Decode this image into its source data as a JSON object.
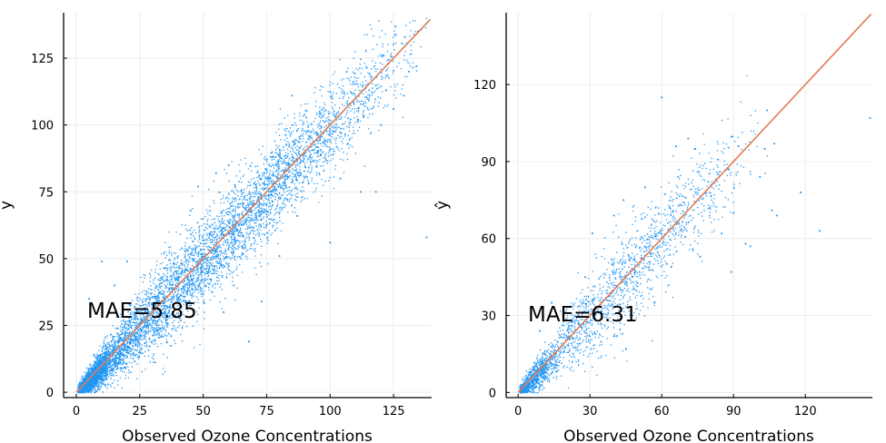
{
  "colors": {
    "points": "#2196f3",
    "line": "#e07b54",
    "grid": "#ececec",
    "axis": "#000000"
  },
  "chart_data": [
    {
      "type": "scatter",
      "title": "",
      "xlabel": "Observed Ozone Concentrations",
      "ylabel": "y",
      "annotation": "MAE=5.85",
      "xlim": [
        -5,
        140
      ],
      "ylim": [
        -2,
        142
      ],
      "xticks": [
        0,
        25,
        50,
        75,
        100,
        125
      ],
      "yticks": [
        0,
        25,
        50,
        75,
        100,
        125
      ],
      "grid": true,
      "reference_line": "y = x",
      "point_cloud": {
        "n": 7000,
        "x_max": 139,
        "noise_sd": 7.3
      },
      "points": [
        {
          "x": 85,
          "y": 111
        },
        {
          "x": 96,
          "y": 104
        },
        {
          "x": 111,
          "y": 102
        },
        {
          "x": 100,
          "y": 100
        },
        {
          "x": 122,
          "y": 113
        },
        {
          "x": 131,
          "y": 120
        },
        {
          "x": 129,
          "y": 111
        },
        {
          "x": 125,
          "y": 106
        },
        {
          "x": 116,
          "y": 97
        },
        {
          "x": 118,
          "y": 75
        },
        {
          "x": 112,
          "y": 75
        },
        {
          "x": 100,
          "y": 56
        },
        {
          "x": 138,
          "y": 58
        },
        {
          "x": 68,
          "y": 19
        },
        {
          "x": 62,
          "y": 40
        },
        {
          "x": 73,
          "y": 34
        },
        {
          "x": 80,
          "y": 51
        },
        {
          "x": 87,
          "y": 66
        },
        {
          "x": 104,
          "y": 80
        },
        {
          "x": 98,
          "y": 94
        },
        {
          "x": 92,
          "y": 88
        },
        {
          "x": 107,
          "y": 93
        },
        {
          "x": 120,
          "y": 100
        },
        {
          "x": 134,
          "y": 122
        },
        {
          "x": 55,
          "y": 82
        },
        {
          "x": 48,
          "y": 77
        },
        {
          "x": 60,
          "y": 85
        },
        {
          "x": 15,
          "y": 40
        },
        {
          "x": 10,
          "y": 49
        },
        {
          "x": 20,
          "y": 49
        },
        {
          "x": 5,
          "y": 35
        },
        {
          "x": 45,
          "y": 68
        },
        {
          "x": 70,
          "y": 78
        },
        {
          "x": 58,
          "y": 30
        }
      ]
    },
    {
      "type": "scatter",
      "title": "",
      "xlabel": "Observed Ozone Concentrations",
      "ylabel": "ŷ",
      "annotation": "MAE=6.31",
      "xlim": [
        -5,
        148
      ],
      "ylim": [
        -2,
        148
      ],
      "xticks": [
        0,
        30,
        60,
        90,
        120
      ],
      "yticks": [
        0,
        30,
        60,
        90,
        120
      ],
      "grid": true,
      "reference_line": "y = x",
      "point_cloud": {
        "n": 2200,
        "x_max": 105,
        "noise_sd": 8.2
      },
      "points": [
        {
          "x": 60,
          "y": 115
        },
        {
          "x": 104,
          "y": 110
        },
        {
          "x": 107,
          "y": 97
        },
        {
          "x": 103,
          "y": 95
        },
        {
          "x": 92,
          "y": 96
        },
        {
          "x": 71,
          "y": 99
        },
        {
          "x": 66,
          "y": 96
        },
        {
          "x": 74,
          "y": 95
        },
        {
          "x": 75,
          "y": 86
        },
        {
          "x": 88,
          "y": 87
        },
        {
          "x": 101,
          "y": 84
        },
        {
          "x": 118,
          "y": 78
        },
        {
          "x": 147,
          "y": 107
        },
        {
          "x": 126,
          "y": 63
        },
        {
          "x": 108,
          "y": 69
        },
        {
          "x": 106,
          "y": 71
        },
        {
          "x": 90,
          "y": 70
        },
        {
          "x": 95,
          "y": 58
        },
        {
          "x": 97,
          "y": 57
        },
        {
          "x": 85,
          "y": 62
        },
        {
          "x": 89,
          "y": 47
        },
        {
          "x": 76,
          "y": 53
        },
        {
          "x": 64,
          "y": 49
        },
        {
          "x": 53,
          "y": 80
        },
        {
          "x": 44,
          "y": 75
        },
        {
          "x": 40,
          "y": 69
        },
        {
          "x": 31,
          "y": 62
        },
        {
          "x": 28,
          "y": 45
        },
        {
          "x": 14,
          "y": 35
        },
        {
          "x": 9,
          "y": 24
        },
        {
          "x": 45,
          "y": 17
        },
        {
          "x": 40,
          "y": 22
        },
        {
          "x": 57,
          "y": 35
        },
        {
          "x": 80,
          "y": 72
        }
      ]
    }
  ]
}
